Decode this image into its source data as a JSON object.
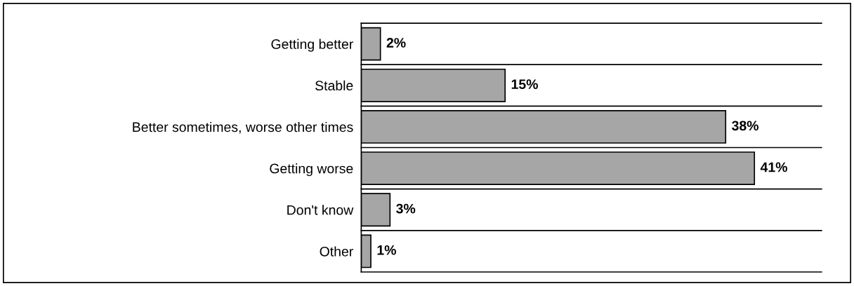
{
  "chart_data": {
    "type": "bar",
    "orientation": "horizontal",
    "categories": [
      "Getting better",
      "Stable",
      "Better sometimes, worse other times",
      "Getting worse",
      "Don't know",
      "Other"
    ],
    "values": [
      2,
      15,
      38,
      41,
      3,
      1
    ],
    "value_labels": [
      "2%",
      "15%",
      "38%",
      "41%",
      "3%",
      "1%"
    ],
    "color": "#a6a6a6",
    "xlim": [
      0,
      48
    ],
    "grid": "y",
    "tick_labels": "y"
  }
}
